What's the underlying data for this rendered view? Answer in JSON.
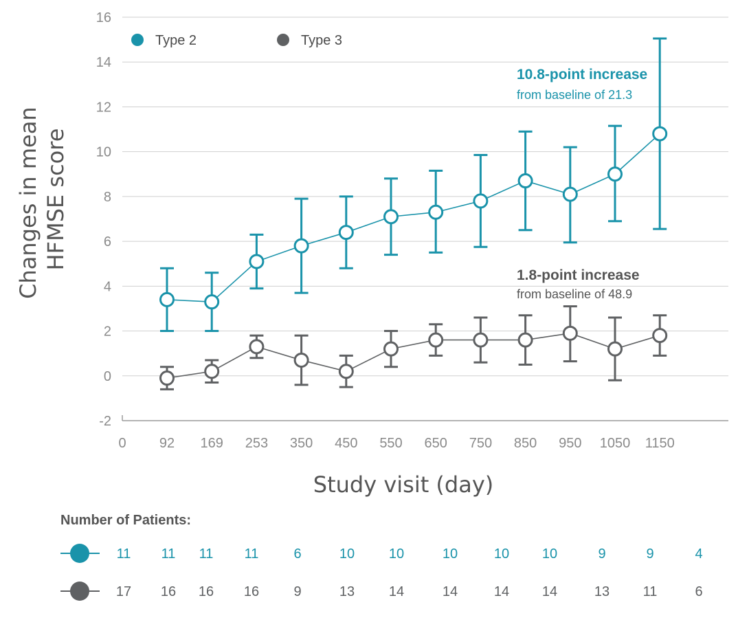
{
  "chart_data": {
    "type": "line",
    "title": "",
    "xlabel": "Study visit (day)",
    "ylabel": "Changes in mean HFMSE score",
    "ylabel_lines": [
      "Changes in mean",
      "HFMSE score"
    ],
    "x_ticks": [
      "0",
      "92",
      "169",
      "253",
      "350",
      "450",
      "550",
      "650",
      "750",
      "850",
      "950",
      "1050",
      "1150"
    ],
    "y_ticks": [
      -2,
      0,
      2,
      4,
      6,
      8,
      10,
      12,
      14,
      16
    ],
    "ylim": [
      -2,
      16
    ],
    "grid": true,
    "legend_placement": "top-left",
    "series": [
      {
        "name": "Type 2",
        "color": "#1a93aa",
        "x": [
          "92",
          "169",
          "253",
          "350",
          "450",
          "550",
          "650",
          "750",
          "850",
          "950",
          "1050",
          "1150"
        ],
        "y": [
          3.4,
          3.3,
          5.1,
          5.8,
          6.4,
          7.1,
          7.3,
          7.8,
          8.7,
          8.1,
          9.0,
          10.8
        ],
        "err_low": [
          2.0,
          2.0,
          3.9,
          3.7,
          4.8,
          5.4,
          5.5,
          5.75,
          6.5,
          5.95,
          6.9,
          6.55
        ],
        "err_high": [
          4.8,
          4.6,
          6.3,
          7.9,
          8.0,
          8.8,
          9.15,
          9.85,
          10.9,
          10.2,
          11.15,
          15.05
        ]
      },
      {
        "name": "Type 3",
        "color": "#5f6163",
        "x": [
          "92",
          "169",
          "253",
          "350",
          "450",
          "550",
          "650",
          "750",
          "850",
          "950",
          "1050",
          "1150"
        ],
        "y": [
          -0.1,
          0.2,
          1.3,
          0.7,
          0.2,
          1.2,
          1.6,
          1.6,
          1.6,
          1.9,
          1.2,
          1.8
        ],
        "err_low": [
          -0.6,
          -0.3,
          0.8,
          -0.4,
          -0.5,
          0.4,
          0.9,
          0.6,
          0.5,
          0.65,
          -0.2,
          0.9
        ],
        "err_high": [
          0.4,
          0.7,
          1.8,
          1.8,
          0.9,
          2.0,
          2.3,
          2.6,
          2.7,
          3.1,
          2.6,
          2.7
        ]
      }
    ],
    "annotations": [
      {
        "series": "Type 2",
        "main": "10.8-point increase",
        "sub": "from baseline of 21.3",
        "color": "#1a93aa"
      },
      {
        "series": "Type 3",
        "main": "1.8-point increase",
        "sub": "from baseline of 48.9",
        "color": "#555555"
      }
    ],
    "patients": {
      "title": "Number of Patients:",
      "rows": [
        {
          "series": "Type 2",
          "color": "#1a93aa",
          "values": [
            "11",
            "11",
            "11",
            "11",
            "6",
            "10",
            "10",
            "10",
            "10",
            "10",
            "9",
            "9",
            "4"
          ]
        },
        {
          "series": "Type 3",
          "color": "#5f6163",
          "values": [
            "17",
            "16",
            "16",
            "16",
            "9",
            "13",
            "14",
            "14",
            "14",
            "14",
            "13",
            "11",
            "6"
          ]
        }
      ]
    }
  }
}
